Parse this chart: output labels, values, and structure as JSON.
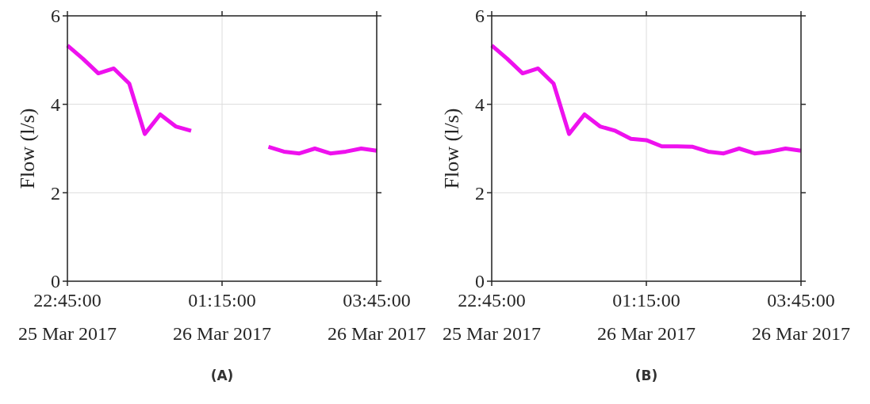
{
  "chart_data": [
    {
      "type": "line",
      "ylabel": "Flow (l/s)",
      "x": [
        "2017-03-25T22:45",
        "2017-03-25T23:00",
        "2017-03-25T23:15",
        "2017-03-25T23:30",
        "2017-03-25T23:45",
        "2017-03-26T00:00",
        "2017-03-26T00:15",
        "2017-03-26T00:30",
        "2017-03-26T00:45",
        "2017-03-26T01:00",
        "2017-03-26T01:15",
        "2017-03-26T01:30",
        "2017-03-26T01:45",
        "2017-03-26T02:00",
        "2017-03-26T02:15",
        "2017-03-26T02:30",
        "2017-03-26T02:45",
        "2017-03-26T03:00",
        "2017-03-26T03:15",
        "2017-03-26T03:30",
        "2017-03-26T03:45"
      ],
      "series": [
        {
          "color": "#ee11ee",
          "values": [
            5.33,
            5.03,
            4.7,
            4.81,
            4.47,
            3.33,
            3.77,
            3.5,
            3.4,
            null,
            null,
            null,
            null,
            3.04,
            2.93,
            2.89,
            3.0,
            2.89,
            2.93,
            3.0,
            2.95
          ]
        }
      ],
      "xlim": [
        "2017-03-25T22:45",
        "2017-03-26T03:45"
      ],
      "xticks": [
        {
          "value": "2017-03-25T22:45",
          "label": "22:45:00\n25 Mar 2017"
        },
        {
          "value": "2017-03-26T01:15",
          "label": "01:15:00\n26 Mar 2017"
        },
        {
          "value": "2017-03-26T03:45",
          "label": "03:45:00\n26 Mar 2017"
        }
      ],
      "ylim": [
        0,
        6
      ],
      "yticks": [
        0,
        2,
        4,
        6
      ],
      "grid": true,
      "annotations": [
        "(A)"
      ]
    },
    {
      "type": "line",
      "ylabel": "Flow (l/s)",
      "x": [
        "2017-03-25T22:45",
        "2017-03-25T23:00",
        "2017-03-25T23:15",
        "2017-03-25T23:30",
        "2017-03-25T23:45",
        "2017-03-26T00:00",
        "2017-03-26T00:15",
        "2017-03-26T00:30",
        "2017-03-26T00:45",
        "2017-03-26T01:00",
        "2017-03-26T01:15",
        "2017-03-26T01:30",
        "2017-03-26T01:45",
        "2017-03-26T02:00",
        "2017-03-26T02:15",
        "2017-03-26T02:30",
        "2017-03-26T02:45",
        "2017-03-26T03:00",
        "2017-03-26T03:15",
        "2017-03-26T03:30",
        "2017-03-26T03:45"
      ],
      "series": [
        {
          "color": "#ee11ee",
          "values": [
            5.33,
            5.03,
            4.7,
            4.81,
            4.47,
            3.33,
            3.77,
            3.5,
            3.4,
            3.22,
            3.19,
            3.05,
            3.05,
            3.04,
            2.93,
            2.89,
            3.0,
            2.89,
            2.93,
            3.0,
            2.95
          ]
        }
      ],
      "xlim": [
        "2017-03-25T22:45",
        "2017-03-26T03:45"
      ],
      "xticks": [
        {
          "value": "2017-03-25T22:45",
          "label": "22:45:00\n25 Mar 2017"
        },
        {
          "value": "2017-03-26T01:15",
          "label": "01:15:00\n26 Mar 2017"
        },
        {
          "value": "2017-03-26T03:45",
          "label": "03:45:00\n26 Mar 2017"
        }
      ],
      "ylim": [
        0,
        6
      ],
      "yticks": [
        0,
        2,
        4,
        6
      ],
      "grid": true,
      "annotations": [
        "(B)"
      ]
    }
  ]
}
